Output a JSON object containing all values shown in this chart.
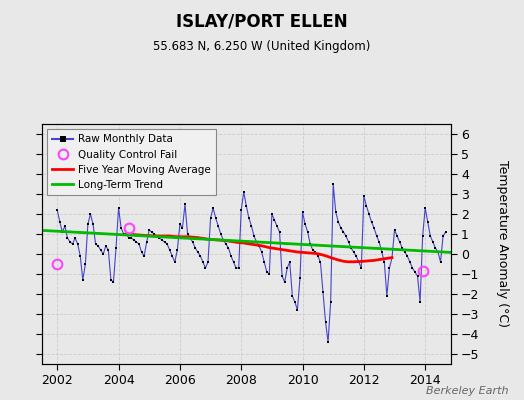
{
  "title": "ISLAY/PORT ELLEN",
  "subtitle": "55.683 N, 6.250 W (United Kingdom)",
  "ylabel": "Temperature Anomaly (°C)",
  "credit": "Berkeley Earth",
  "xlim": [
    2001.5,
    2014.83
  ],
  "ylim": [
    -5.5,
    6.5
  ],
  "yticks": [
    -5,
    -4,
    -3,
    -2,
    -1,
    0,
    1,
    2,
    3,
    4,
    5,
    6
  ],
  "xticks": [
    2002,
    2004,
    2006,
    2008,
    2010,
    2012,
    2014
  ],
  "background_color": "#e8e8e8",
  "plot_bg_color": "#e8e8e8",
  "raw_color": "#4444cc",
  "raw_marker_color": "#000000",
  "ma_color": "#ff0000",
  "trend_color": "#00bb00",
  "qc_color": "#ff44ff",
  "raw_data": [
    [
      2002.0,
      2.2
    ],
    [
      2002.083,
      1.6
    ],
    [
      2002.167,
      1.1
    ],
    [
      2002.25,
      1.4
    ],
    [
      2002.333,
      0.8
    ],
    [
      2002.417,
      0.6
    ],
    [
      2002.5,
      0.5
    ],
    [
      2002.583,
      0.8
    ],
    [
      2002.667,
      0.5
    ],
    [
      2002.75,
      -0.1
    ],
    [
      2002.833,
      -1.3
    ],
    [
      2002.917,
      -0.5
    ],
    [
      2003.0,
      1.5
    ],
    [
      2003.083,
      2.0
    ],
    [
      2003.167,
      1.5
    ],
    [
      2003.25,
      0.5
    ],
    [
      2003.333,
      0.4
    ],
    [
      2003.417,
      0.2
    ],
    [
      2003.5,
      0.0
    ],
    [
      2003.583,
      0.4
    ],
    [
      2003.667,
      0.2
    ],
    [
      2003.75,
      -1.3
    ],
    [
      2003.833,
      -1.4
    ],
    [
      2003.917,
      0.3
    ],
    [
      2004.0,
      2.3
    ],
    [
      2004.083,
      1.3
    ],
    [
      2004.167,
      1.0
    ],
    [
      2004.25,
      1.0
    ],
    [
      2004.333,
      0.8
    ],
    [
      2004.417,
      0.8
    ],
    [
      2004.5,
      0.7
    ],
    [
      2004.583,
      0.6
    ],
    [
      2004.667,
      0.5
    ],
    [
      2004.75,
      0.1
    ],
    [
      2004.833,
      -0.1
    ],
    [
      2004.917,
      0.6
    ],
    [
      2005.0,
      1.2
    ],
    [
      2005.083,
      1.1
    ],
    [
      2005.167,
      1.0
    ],
    [
      2005.25,
      0.9
    ],
    [
      2005.333,
      0.8
    ],
    [
      2005.417,
      0.7
    ],
    [
      2005.5,
      0.6
    ],
    [
      2005.583,
      0.5
    ],
    [
      2005.667,
      0.2
    ],
    [
      2005.75,
      -0.1
    ],
    [
      2005.833,
      -0.4
    ],
    [
      2005.917,
      0.2
    ],
    [
      2006.0,
      1.5
    ],
    [
      2006.083,
      1.3
    ],
    [
      2006.167,
      2.5
    ],
    [
      2006.25,
      1.0
    ],
    [
      2006.333,
      0.8
    ],
    [
      2006.417,
      0.6
    ],
    [
      2006.5,
      0.3
    ],
    [
      2006.583,
      0.1
    ],
    [
      2006.667,
      -0.1
    ],
    [
      2006.75,
      -0.4
    ],
    [
      2006.833,
      -0.7
    ],
    [
      2006.917,
      -0.4
    ],
    [
      2007.0,
      1.8
    ],
    [
      2007.083,
      2.3
    ],
    [
      2007.167,
      1.8
    ],
    [
      2007.25,
      1.4
    ],
    [
      2007.333,
      1.0
    ],
    [
      2007.417,
      0.7
    ],
    [
      2007.5,
      0.5
    ],
    [
      2007.583,
      0.3
    ],
    [
      2007.667,
      -0.1
    ],
    [
      2007.75,
      -0.4
    ],
    [
      2007.833,
      -0.7
    ],
    [
      2007.917,
      -0.7
    ],
    [
      2008.0,
      2.2
    ],
    [
      2008.083,
      3.1
    ],
    [
      2008.167,
      2.4
    ],
    [
      2008.25,
      1.8
    ],
    [
      2008.333,
      1.4
    ],
    [
      2008.417,
      0.9
    ],
    [
      2008.5,
      0.6
    ],
    [
      2008.583,
      0.4
    ],
    [
      2008.667,
      0.1
    ],
    [
      2008.75,
      -0.4
    ],
    [
      2008.833,
      -0.9
    ],
    [
      2008.917,
      -1.0
    ],
    [
      2009.0,
      2.0
    ],
    [
      2009.083,
      1.7
    ],
    [
      2009.167,
      1.4
    ],
    [
      2009.25,
      1.1
    ],
    [
      2009.333,
      -1.1
    ],
    [
      2009.417,
      -1.4
    ],
    [
      2009.5,
      -0.7
    ],
    [
      2009.583,
      -0.4
    ],
    [
      2009.667,
      -2.1
    ],
    [
      2009.75,
      -2.4
    ],
    [
      2009.833,
      -2.8
    ],
    [
      2009.917,
      -1.2
    ],
    [
      2010.0,
      2.1
    ],
    [
      2010.083,
      1.5
    ],
    [
      2010.167,
      1.1
    ],
    [
      2010.25,
      0.5
    ],
    [
      2010.333,
      0.2
    ],
    [
      2010.417,
      0.1
    ],
    [
      2010.5,
      -0.1
    ],
    [
      2010.583,
      -0.4
    ],
    [
      2010.667,
      -1.9
    ],
    [
      2010.75,
      -3.4
    ],
    [
      2010.833,
      -4.4
    ],
    [
      2010.917,
      -2.4
    ],
    [
      2011.0,
      3.5
    ],
    [
      2011.083,
      2.1
    ],
    [
      2011.167,
      1.6
    ],
    [
      2011.25,
      1.3
    ],
    [
      2011.333,
      1.1
    ],
    [
      2011.417,
      0.9
    ],
    [
      2011.5,
      0.6
    ],
    [
      2011.583,
      0.3
    ],
    [
      2011.667,
      0.1
    ],
    [
      2011.75,
      -0.1
    ],
    [
      2011.833,
      -0.4
    ],
    [
      2011.917,
      -0.7
    ],
    [
      2012.0,
      2.9
    ],
    [
      2012.083,
      2.4
    ],
    [
      2012.167,
      2.0
    ],
    [
      2012.25,
      1.6
    ],
    [
      2012.333,
      1.3
    ],
    [
      2012.417,
      0.9
    ],
    [
      2012.5,
      0.6
    ],
    [
      2012.583,
      0.1
    ],
    [
      2012.667,
      -0.4
    ],
    [
      2012.75,
      -2.1
    ],
    [
      2012.833,
      -0.7
    ],
    [
      2012.917,
      -0.2
    ],
    [
      2013.0,
      1.2
    ],
    [
      2013.083,
      0.9
    ],
    [
      2013.167,
      0.6
    ],
    [
      2013.25,
      0.3
    ],
    [
      2013.333,
      0.1
    ],
    [
      2013.417,
      -0.1
    ],
    [
      2013.5,
      -0.4
    ],
    [
      2013.583,
      -0.7
    ],
    [
      2013.667,
      -0.9
    ],
    [
      2013.75,
      -1.1
    ],
    [
      2013.833,
      -2.4
    ],
    [
      2013.917,
      0.9
    ],
    [
      2014.0,
      2.3
    ],
    [
      2014.083,
      1.6
    ],
    [
      2014.167,
      0.9
    ],
    [
      2014.25,
      0.6
    ],
    [
      2014.333,
      0.3
    ],
    [
      2014.417,
      0.1
    ],
    [
      2014.5,
      -0.4
    ],
    [
      2014.583,
      0.9
    ],
    [
      2014.667,
      1.1
    ]
  ],
  "qc_fail_points": [
    [
      2002.0,
      -0.5
    ],
    [
      2004.333,
      1.3
    ],
    [
      2013.917,
      -0.85
    ]
  ],
  "moving_avg": [
    [
      2004.25,
      1.0
    ],
    [
      2004.333,
      0.99
    ],
    [
      2004.417,
      0.98
    ],
    [
      2004.5,
      0.97
    ],
    [
      2004.583,
      0.96
    ],
    [
      2004.667,
      0.95
    ],
    [
      2004.75,
      0.94
    ],
    [
      2004.833,
      0.93
    ],
    [
      2004.917,
      0.92
    ],
    [
      2005.0,
      0.92
    ],
    [
      2005.083,
      0.91
    ],
    [
      2005.167,
      0.91
    ],
    [
      2005.25,
      0.9
    ],
    [
      2005.333,
      0.9
    ],
    [
      2005.417,
      0.9
    ],
    [
      2005.5,
      0.9
    ],
    [
      2005.583,
      0.9
    ],
    [
      2005.667,
      0.9
    ],
    [
      2005.75,
      0.88
    ],
    [
      2005.833,
      0.87
    ],
    [
      2005.917,
      0.86
    ],
    [
      2006.0,
      0.86
    ],
    [
      2006.083,
      0.86
    ],
    [
      2006.167,
      0.86
    ],
    [
      2006.25,
      0.86
    ],
    [
      2006.333,
      0.85
    ],
    [
      2006.417,
      0.84
    ],
    [
      2006.5,
      0.83
    ],
    [
      2006.583,
      0.82
    ],
    [
      2006.667,
      0.8
    ],
    [
      2006.75,
      0.78
    ],
    [
      2006.833,
      0.76
    ],
    [
      2006.917,
      0.74
    ],
    [
      2007.0,
      0.73
    ],
    [
      2007.083,
      0.72
    ],
    [
      2007.167,
      0.71
    ],
    [
      2007.25,
      0.7
    ],
    [
      2007.333,
      0.69
    ],
    [
      2007.417,
      0.68
    ],
    [
      2007.5,
      0.67
    ],
    [
      2007.583,
      0.65
    ],
    [
      2007.667,
      0.63
    ],
    [
      2007.75,
      0.61
    ],
    [
      2007.833,
      0.59
    ],
    [
      2007.917,
      0.57
    ],
    [
      2008.0,
      0.56
    ],
    [
      2008.083,
      0.55
    ],
    [
      2008.167,
      0.53
    ],
    [
      2008.25,
      0.51
    ],
    [
      2008.333,
      0.49
    ],
    [
      2008.417,
      0.47
    ],
    [
      2008.5,
      0.45
    ],
    [
      2008.583,
      0.43
    ],
    [
      2008.667,
      0.41
    ],
    [
      2008.75,
      0.38
    ],
    [
      2008.833,
      0.35
    ],
    [
      2008.917,
      0.32
    ],
    [
      2009.0,
      0.3
    ],
    [
      2009.083,
      0.28
    ],
    [
      2009.167,
      0.26
    ],
    [
      2009.25,
      0.24
    ],
    [
      2009.333,
      0.22
    ],
    [
      2009.417,
      0.2
    ],
    [
      2009.5,
      0.18
    ],
    [
      2009.583,
      0.16
    ],
    [
      2009.667,
      0.14
    ],
    [
      2009.75,
      0.12
    ],
    [
      2009.833,
      0.1
    ],
    [
      2009.917,
      0.09
    ],
    [
      2010.0,
      0.08
    ],
    [
      2010.083,
      0.07
    ],
    [
      2010.167,
      0.06
    ],
    [
      2010.25,
      0.05
    ],
    [
      2010.333,
      0.04
    ],
    [
      2010.417,
      0.03
    ],
    [
      2010.5,
      0.01
    ],
    [
      2010.583,
      -0.02
    ],
    [
      2010.667,
      -0.05
    ],
    [
      2010.75,
      -0.09
    ],
    [
      2010.833,
      -0.13
    ],
    [
      2010.917,
      -0.18
    ],
    [
      2011.0,
      -0.22
    ],
    [
      2011.083,
      -0.26
    ],
    [
      2011.167,
      -0.3
    ],
    [
      2011.25,
      -0.33
    ],
    [
      2011.333,
      -0.36
    ],
    [
      2011.417,
      -0.38
    ],
    [
      2011.5,
      -0.39
    ],
    [
      2011.583,
      -0.39
    ],
    [
      2011.667,
      -0.39
    ],
    [
      2011.75,
      -0.38
    ],
    [
      2011.833,
      -0.38
    ],
    [
      2011.917,
      -0.37
    ],
    [
      2012.0,
      -0.36
    ],
    [
      2012.083,
      -0.35
    ],
    [
      2012.167,
      -0.34
    ],
    [
      2012.25,
      -0.33
    ],
    [
      2012.333,
      -0.32
    ],
    [
      2012.417,
      -0.3
    ],
    [
      2012.5,
      -0.28
    ],
    [
      2012.583,
      -0.26
    ],
    [
      2012.667,
      -0.24
    ],
    [
      2012.75,
      -0.22
    ],
    [
      2012.833,
      -0.2
    ],
    [
      2012.917,
      -0.18
    ]
  ],
  "trend_x": [
    2001.5,
    2014.83
  ],
  "trend_y": [
    1.18,
    0.08
  ]
}
